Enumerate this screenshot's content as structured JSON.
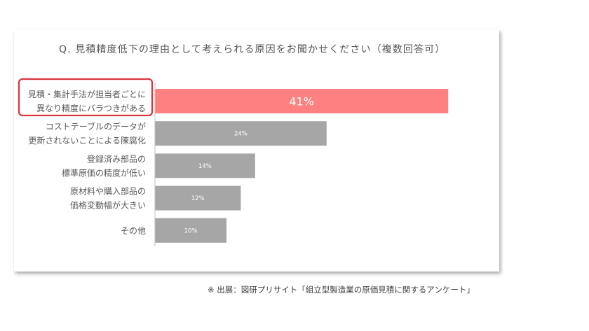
{
  "chart_data": {
    "type": "bar",
    "orientation": "horizontal",
    "title": "Q.  見積精度低下の理由として考えられる原因をお聞かせください（複数回答可）",
    "categories": [
      [
        "見積・集計手法が担当者ごとに",
        "異なり精度にバラつきがある"
      ],
      [
        "コストテーブルのデータが",
        "更新されないことによる陳腐化"
      ],
      [
        "登録済み部品の",
        "標準原価の精度が低い"
      ],
      [
        "原材料や購入部品の",
        "価格変動幅が大きい"
      ],
      [
        "その他"
      ]
    ],
    "values": [
      41,
      24,
      14,
      12,
      10
    ],
    "value_labels": [
      "41%",
      "24%",
      "14%",
      "12%",
      "10%"
    ],
    "highlight_index": 0,
    "xlim": [
      0,
      100
    ],
    "grid": false,
    "legend": "none",
    "colors": {
      "highlight": "#ff8080",
      "default": "#a6a6a6",
      "highlight_border": "#d9363e",
      "axis": "#bfbfbf",
      "label_text": "#595959"
    }
  },
  "source_note": "※ 出展：図研プリサイト「組立型製造業の原価見積に関するアンケート」"
}
